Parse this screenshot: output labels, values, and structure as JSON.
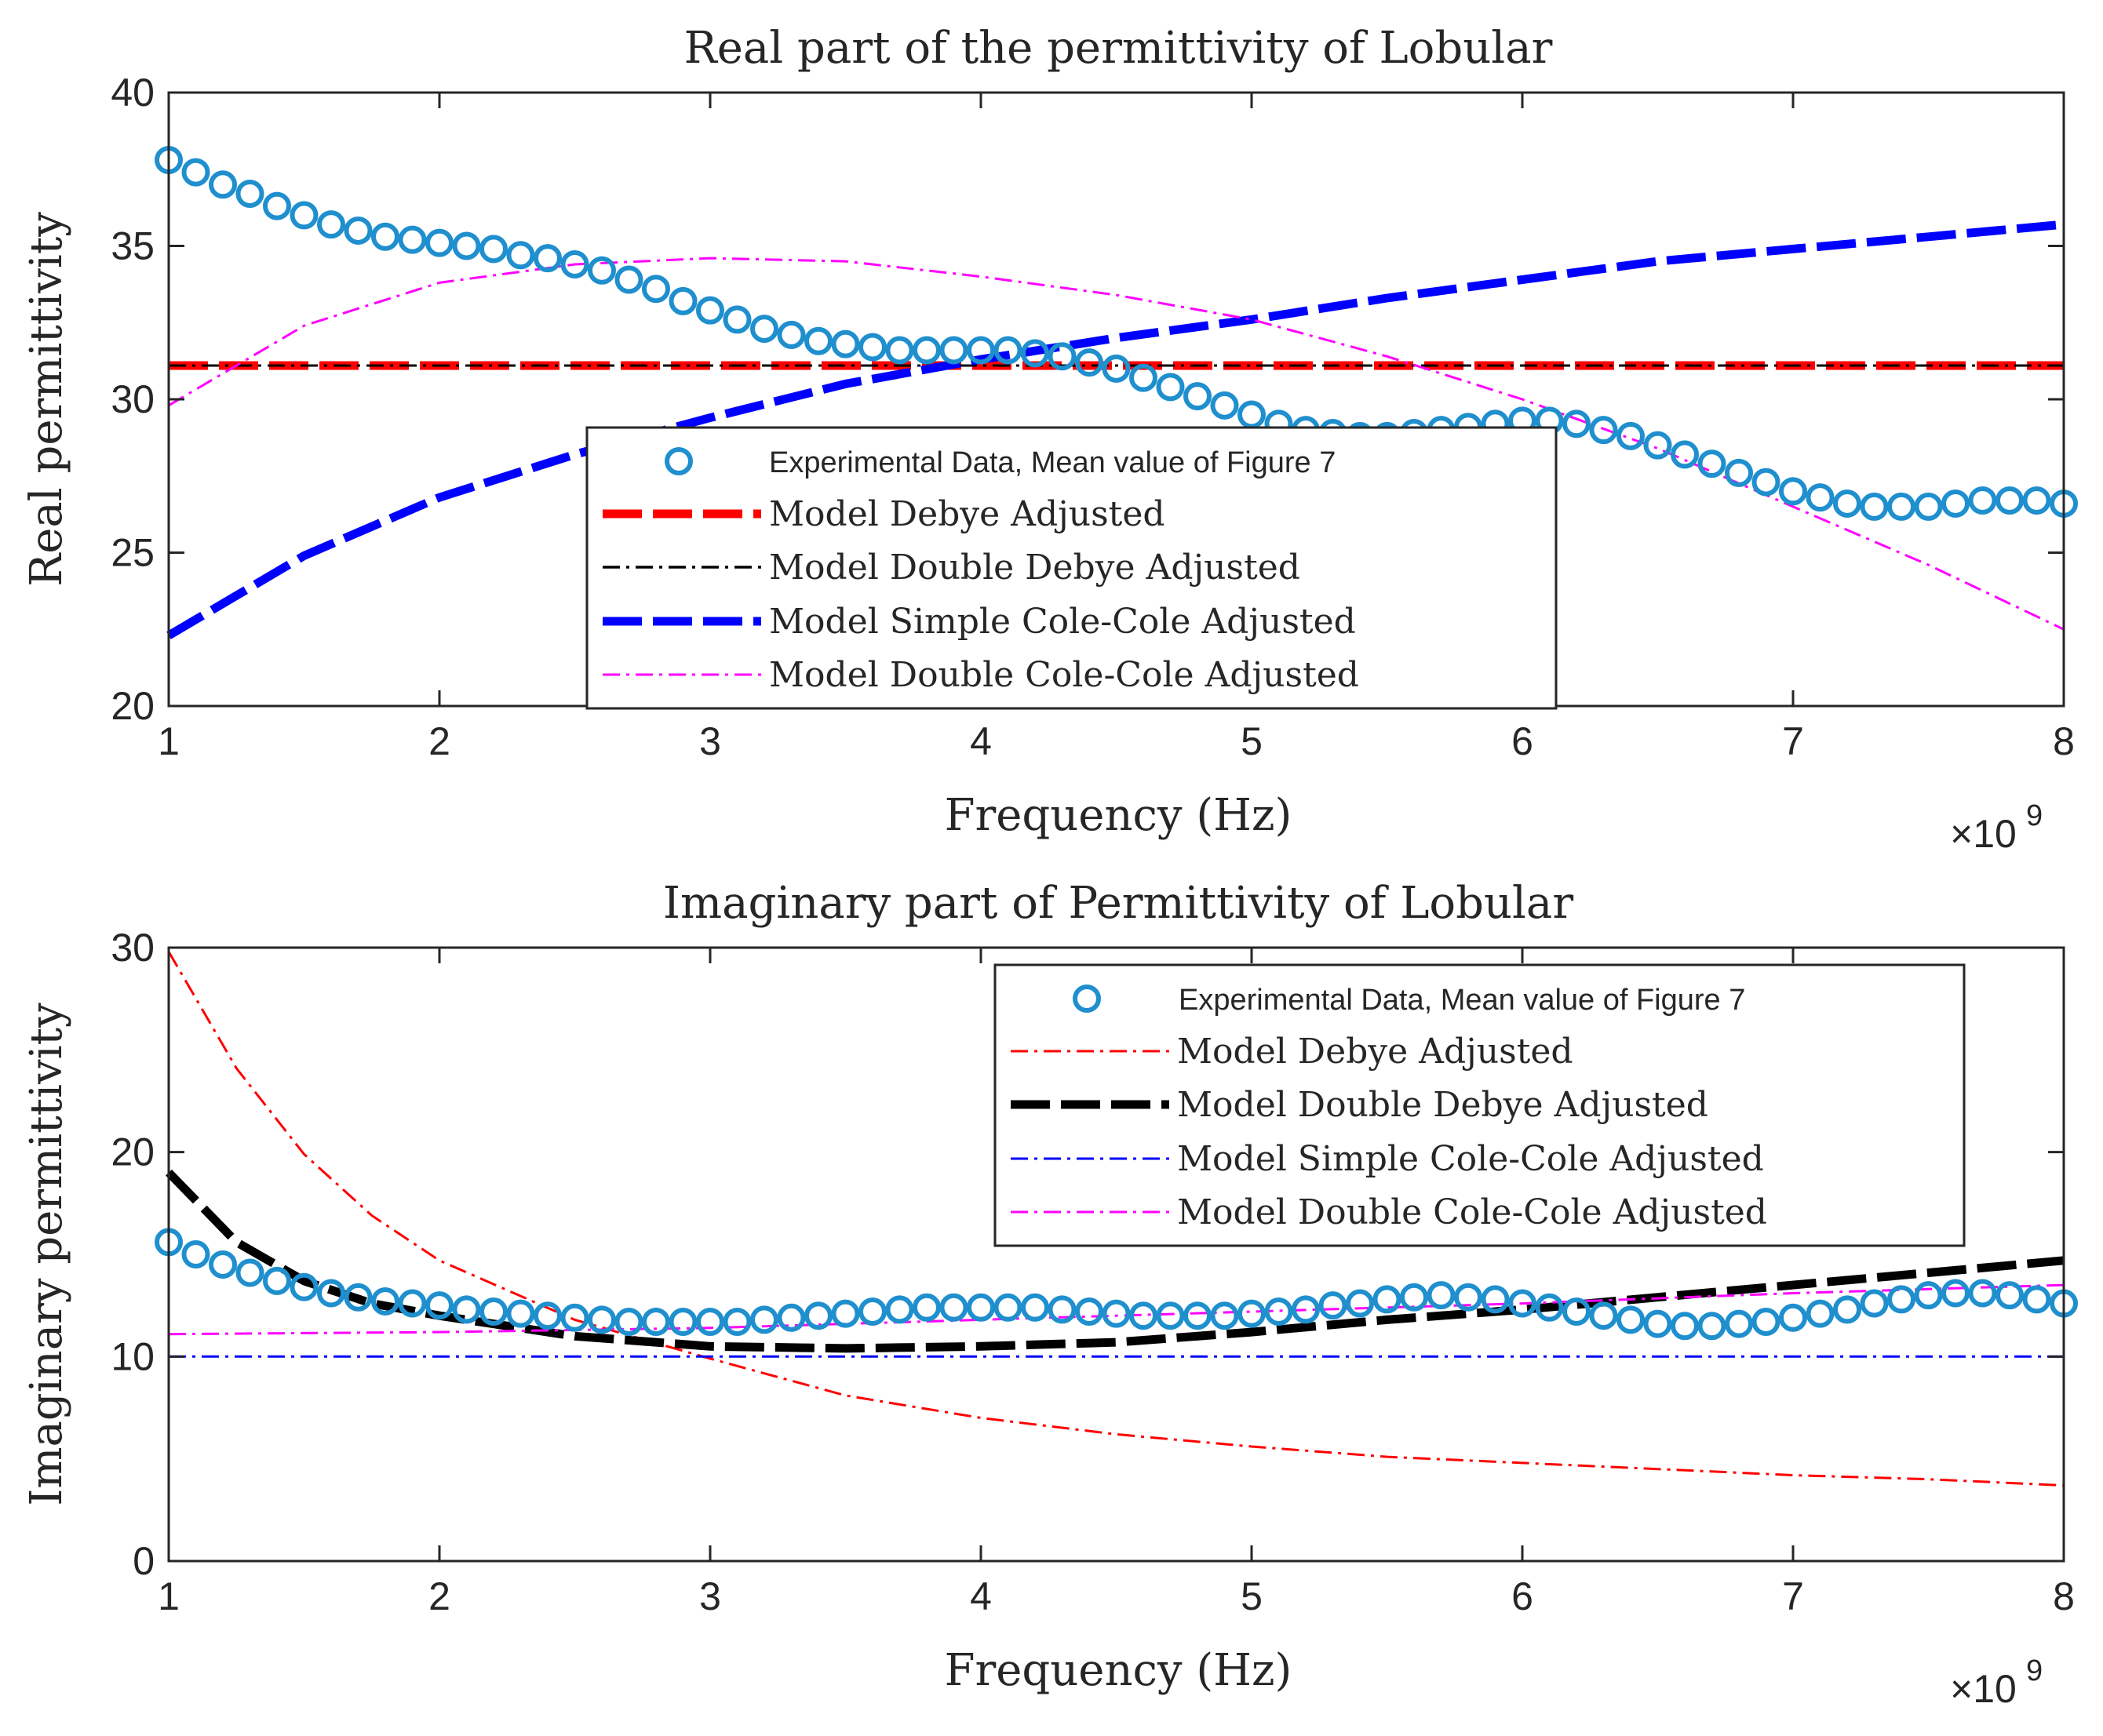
{
  "chart_data": [
    {
      "type": "line",
      "title": "Real part of the permittivity of Lobular",
      "xlabel": "Frequency (Hz)",
      "ylabel": "Real permittivity",
      "x_multiplier_label": "×10",
      "x_multiplier_exp": "9",
      "xlim": [
        1,
        8
      ],
      "ylim": [
        20,
        40
      ],
      "xticks": [
        1,
        2,
        3,
        4,
        5,
        6,
        7,
        8
      ],
      "yticks": [
        20,
        25,
        30,
        35,
        40
      ],
      "legend_position": "center",
      "series": [
        {
          "name": "Experimental Data, Mean value of Figure 7",
          "style": "markers",
          "color": "#1f8fce",
          "x": [
            1.0,
            1.1,
            1.2,
            1.3,
            1.4,
            1.5,
            1.6,
            1.7,
            1.8,
            1.9,
            2.0,
            2.1,
            2.2,
            2.3,
            2.4,
            2.5,
            2.6,
            2.7,
            2.8,
            2.9,
            3.0,
            3.1,
            3.2,
            3.3,
            3.4,
            3.5,
            3.6,
            3.7,
            3.8,
            3.9,
            4.0,
            4.1,
            4.2,
            4.3,
            4.4,
            4.5,
            4.6,
            4.7,
            4.8,
            4.9,
            5.0,
            5.1,
            5.2,
            5.3,
            5.4,
            5.5,
            5.6,
            5.7,
            5.8,
            5.9,
            6.0,
            6.1,
            6.2,
            6.3,
            6.4,
            6.5,
            6.6,
            6.7,
            6.8,
            6.9,
            7.0,
            7.1,
            7.2,
            7.3,
            7.4,
            7.5,
            7.6,
            7.7,
            7.8,
            7.9,
            8.0
          ],
          "y": [
            37.8,
            37.4,
            37.0,
            36.7,
            36.3,
            36.0,
            35.7,
            35.5,
            35.3,
            35.2,
            35.1,
            35.0,
            34.9,
            34.7,
            34.6,
            34.4,
            34.2,
            33.9,
            33.6,
            33.2,
            32.9,
            32.6,
            32.3,
            32.1,
            31.9,
            31.8,
            31.7,
            31.6,
            31.6,
            31.6,
            31.6,
            31.6,
            31.5,
            31.4,
            31.2,
            31.0,
            30.7,
            30.4,
            30.1,
            29.8,
            29.5,
            29.2,
            29.0,
            28.9,
            28.8,
            28.8,
            28.9,
            29.0,
            29.1,
            29.2,
            29.3,
            29.3,
            29.2,
            29.0,
            28.8,
            28.5,
            28.2,
            27.9,
            27.6,
            27.3,
            27.0,
            26.8,
            26.6,
            26.5,
            26.5,
            26.5,
            26.6,
            26.7,
            26.7,
            26.7,
            26.6
          ]
        },
        {
          "name": "Model Debye Adjusted",
          "style": "dashed-thick",
          "color": "#ff0000",
          "x": [
            1,
            8
          ],
          "y": [
            31.1,
            31.1
          ]
        },
        {
          "name": "Model Double Debye Adjusted",
          "style": "dashdot-thin",
          "color": "#000000",
          "x": [
            1,
            8
          ],
          "y": [
            31.1,
            31.1
          ]
        },
        {
          "name": "Model Simple Cole-Cole Adjusted",
          "style": "dashed-thick",
          "color": "#0000ff",
          "x": [
            1.0,
            1.5,
            2.0,
            2.5,
            3.0,
            3.5,
            4.0,
            4.5,
            5.0,
            5.5,
            6.0,
            6.5,
            7.0,
            7.5,
            8.0
          ],
          "y": [
            22.3,
            24.9,
            26.8,
            28.2,
            29.4,
            30.5,
            31.3,
            32.0,
            32.6,
            33.3,
            33.9,
            34.5,
            34.9,
            35.3,
            35.7
          ]
        },
        {
          "name": "Model Double Cole-Cole Adjusted",
          "style": "dashdot-thin",
          "color": "#ff00ff",
          "x": [
            1.0,
            1.5,
            2.0,
            2.5,
            3.0,
            3.5,
            4.0,
            4.5,
            5.0,
            5.5,
            6.0,
            6.5,
            7.0,
            7.5,
            8.0
          ],
          "y": [
            29.8,
            32.4,
            33.8,
            34.4,
            34.6,
            34.5,
            34.0,
            33.4,
            32.6,
            31.4,
            30.0,
            28.4,
            26.5,
            24.6,
            22.5
          ]
        }
      ]
    },
    {
      "type": "line",
      "title": "Imaginary part of Permittivity of Lobular",
      "xlabel": "Frequency (Hz)",
      "ylabel": "Imaginary permittivity",
      "x_multiplier_label": "×10",
      "x_multiplier_exp": "9",
      "xlim": [
        1,
        8
      ],
      "ylim": [
        0,
        30
      ],
      "xticks": [
        1,
        2,
        3,
        4,
        5,
        6,
        7,
        8
      ],
      "yticks": [
        0,
        10,
        20,
        30
      ],
      "legend_position": "top-right",
      "series": [
        {
          "name": "Experimental Data, Mean value of Figure 7",
          "style": "markers",
          "color": "#1f8fce",
          "x": [
            1.0,
            1.1,
            1.2,
            1.3,
            1.4,
            1.5,
            1.6,
            1.7,
            1.8,
            1.9,
            2.0,
            2.1,
            2.2,
            2.3,
            2.4,
            2.5,
            2.6,
            2.7,
            2.8,
            2.9,
            3.0,
            3.1,
            3.2,
            3.3,
            3.4,
            3.5,
            3.6,
            3.7,
            3.8,
            3.9,
            4.0,
            4.1,
            4.2,
            4.3,
            4.4,
            4.5,
            4.6,
            4.7,
            4.8,
            4.9,
            5.0,
            5.1,
            5.2,
            5.3,
            5.4,
            5.5,
            5.6,
            5.7,
            5.8,
            5.9,
            6.0,
            6.1,
            6.2,
            6.3,
            6.4,
            6.5,
            6.6,
            6.7,
            6.8,
            6.9,
            7.0,
            7.1,
            7.2,
            7.3,
            7.4,
            7.5,
            7.6,
            7.7,
            7.8,
            7.9,
            8.0
          ],
          "y": [
            15.6,
            15.0,
            14.5,
            14.1,
            13.7,
            13.4,
            13.1,
            12.9,
            12.7,
            12.6,
            12.5,
            12.3,
            12.2,
            12.1,
            12.0,
            11.9,
            11.8,
            11.7,
            11.7,
            11.7,
            11.7,
            11.7,
            11.8,
            11.9,
            12.0,
            12.1,
            12.2,
            12.3,
            12.4,
            12.4,
            12.4,
            12.4,
            12.4,
            12.3,
            12.2,
            12.1,
            12.0,
            12.0,
            12.0,
            12.0,
            12.1,
            12.2,
            12.3,
            12.5,
            12.6,
            12.8,
            12.9,
            13.0,
            12.9,
            12.8,
            12.6,
            12.4,
            12.2,
            12.0,
            11.8,
            11.6,
            11.5,
            11.5,
            11.6,
            11.7,
            11.9,
            12.1,
            12.3,
            12.6,
            12.8,
            13.0,
            13.1,
            13.1,
            13.0,
            12.8,
            12.6
          ]
        },
        {
          "name": "Model Debye Adjusted",
          "style": "dashdot-thin",
          "color": "#ff0000",
          "x": [
            1.0,
            1.25,
            1.5,
            1.75,
            2.0,
            2.5,
            3.0,
            3.5,
            4.0,
            4.5,
            5.0,
            5.5,
            6.0,
            6.5,
            7.0,
            7.5,
            8.0
          ],
          "y": [
            29.8,
            24.1,
            19.9,
            16.9,
            14.7,
            11.8,
            9.9,
            8.1,
            7.0,
            6.2,
            5.6,
            5.1,
            4.8,
            4.5,
            4.2,
            4.0,
            3.7
          ]
        },
        {
          "name": "Model Double Debye Adjusted",
          "style": "dashed-thick",
          "color": "#000000",
          "x": [
            1.0,
            1.25,
            1.5,
            1.75,
            2.0,
            2.5,
            3.0,
            3.5,
            4.0,
            4.5,
            5.0,
            5.5,
            6.0,
            6.5,
            7.0,
            7.5,
            8.0
          ],
          "y": [
            19.0,
            15.6,
            13.7,
            12.6,
            12.0,
            11.0,
            10.5,
            10.4,
            10.5,
            10.7,
            11.2,
            11.8,
            12.3,
            12.9,
            13.5,
            14.1,
            14.7
          ]
        },
        {
          "name": "Model Simple Cole-Cole Adjusted",
          "style": "dashdot-thin",
          "color": "#0000ff",
          "x": [
            1,
            8
          ],
          "y": [
            10.0,
            10.0
          ]
        },
        {
          "name": "Model Double Cole-Cole Adjusted",
          "style": "dashdot-thin",
          "color": "#ff00ff",
          "x": [
            1.0,
            2.0,
            3.0,
            4.0,
            5.0,
            6.0,
            7.0,
            8.0
          ],
          "y": [
            11.1,
            11.2,
            11.4,
            11.8,
            12.2,
            12.6,
            13.1,
            13.5
          ]
        }
      ]
    }
  ]
}
